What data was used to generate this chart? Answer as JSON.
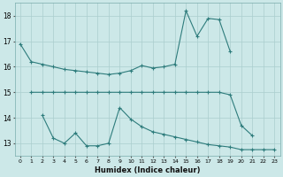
{
  "xlabel": "Humidex (Indice chaleur)",
  "bg_color": "#cce8e8",
  "line_color": "#2e7c7c",
  "grid_color": "#aacece",
  "ylim": [
    12.5,
    18.5
  ],
  "yticks": [
    13,
    14,
    15,
    16,
    17,
    18
  ],
  "xlim": [
    -0.5,
    23.5
  ],
  "xticks": [
    0,
    1,
    2,
    3,
    4,
    5,
    6,
    7,
    8,
    9,
    10,
    11,
    12,
    13,
    14,
    15,
    16,
    17,
    18,
    19,
    20,
    21,
    22,
    23
  ],
  "line1_x": [
    0,
    1,
    2,
    3,
    4,
    5,
    6,
    7,
    8,
    9,
    10,
    11,
    12,
    13,
    14,
    15,
    16,
    17,
    18,
    19
  ],
  "line1_y": [
    16.9,
    16.2,
    16.1,
    16.0,
    15.9,
    15.85,
    15.8,
    15.75,
    15.7,
    15.75,
    15.85,
    16.05,
    15.95,
    16.0,
    16.1,
    18.2,
    17.2,
    17.9,
    17.85,
    16.6
  ],
  "line2_x": [
    1,
    2,
    3,
    4,
    5,
    6,
    7,
    8,
    9,
    10,
    11,
    12,
    13,
    14,
    15,
    16,
    17,
    18,
    19,
    20,
    21
  ],
  "line2_y": [
    15.0,
    15.0,
    15.0,
    15.0,
    15.0,
    15.0,
    15.0,
    15.0,
    15.0,
    15.0,
    15.0,
    15.0,
    15.0,
    15.0,
    15.0,
    15.0,
    15.0,
    15.0,
    14.9,
    13.7,
    13.3
  ],
  "line3_x": [
    2,
    3,
    4,
    5,
    6,
    7,
    8,
    9,
    10,
    11,
    12,
    13,
    14,
    15,
    16,
    17,
    18,
    19,
    20,
    21,
    22,
    23
  ],
  "line3_y": [
    14.1,
    13.2,
    13.0,
    13.4,
    12.9,
    12.9,
    13.0,
    14.4,
    13.95,
    13.65,
    13.45,
    13.35,
    13.25,
    13.15,
    13.05,
    12.95,
    12.9,
    12.85,
    12.75,
    12.75,
    12.75,
    12.75
  ]
}
